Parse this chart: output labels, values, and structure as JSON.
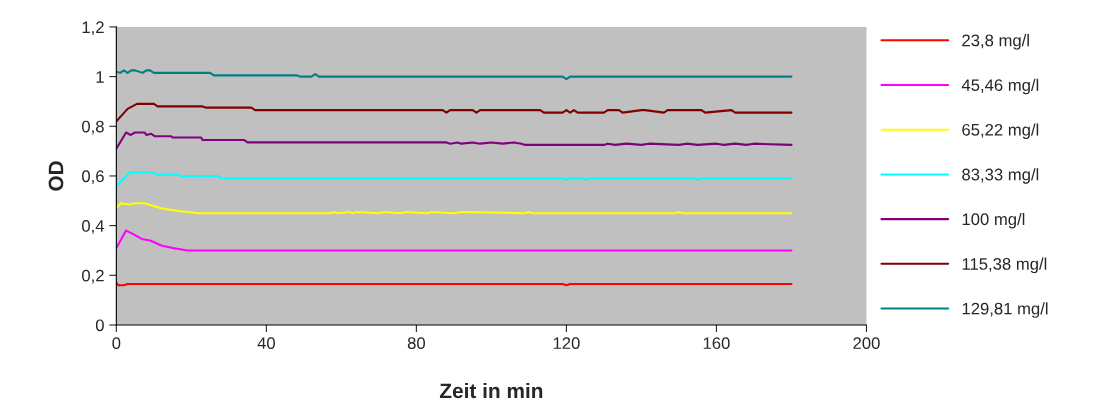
{
  "chart_data": {
    "type": "line",
    "xlabel": "Zeit in min",
    "ylabel": "OD",
    "xlim": [
      0,
      200
    ],
    "ylim": [
      0,
      1.2
    ],
    "xticks": [
      0,
      40,
      80,
      120,
      160,
      200
    ],
    "yticks": [
      0,
      {
        "value": 0.2,
        "label": "0,2"
      },
      {
        "value": 0.4,
        "label": "0,4"
      },
      {
        "value": 0.6,
        "label": "0,6"
      },
      {
        "value": 0.8,
        "label": "0,8"
      },
      1,
      {
        "value": 1.2,
        "label": "1,2"
      }
    ],
    "grid": false,
    "legend": "right",
    "marker": "none",
    "line_style": "solid",
    "series": [
      {
        "name": "23,8 mg/l",
        "color": "#ff0000",
        "x": [
          0,
          0.5,
          1,
          2,
          3,
          119,
          120,
          121,
          180
        ],
        "values": [
          0.17,
          0.16,
          0.16,
          0.16,
          0.165,
          0.165,
          0.16,
          0.165,
          0.165
        ]
      },
      {
        "name": "45,46 mg/l",
        "color": "#ff00ff",
        "x": [
          0,
          2.6,
          4,
          7,
          9,
          12,
          15,
          19,
          180
        ],
        "values": [
          0.31,
          0.38,
          0.37,
          0.345,
          0.34,
          0.32,
          0.31,
          0.3,
          0.3
        ]
      },
      {
        "name": "65,22 mg/l",
        "color": "#ffff00",
        "x": [
          0,
          1.2,
          3.5,
          5,
          7.5,
          9.7,
          12,
          16,
          22,
          57,
          58,
          59,
          62,
          63,
          64,
          70,
          71,
          76,
          77,
          83,
          84,
          90,
          92,
          109,
          110,
          111,
          149,
          150,
          151,
          180
        ],
        "values": [
          0.47,
          0.49,
          0.485,
          0.49,
          0.49,
          0.48,
          0.47,
          0.46,
          0.45,
          0.45,
          0.455,
          0.45,
          0.455,
          0.45,
          0.455,
          0.45,
          0.455,
          0.45,
          0.455,
          0.45,
          0.455,
          0.45,
          0.455,
          0.45,
          0.455,
          0.45,
          0.45,
          0.455,
          0.45,
          0.45
        ]
      },
      {
        "name": "83,33 mg/l",
        "color": "#00ffff",
        "x": [
          0,
          3.7,
          9.7,
          10.6,
          16.4,
          17,
          27,
          28,
          119,
          120,
          121,
          124,
          125,
          126,
          154,
          155,
          156,
          180
        ],
        "values": [
          0.56,
          0.615,
          0.615,
          0.605,
          0.605,
          0.6,
          0.6,
          0.59,
          0.59,
          0.585,
          0.59,
          0.59,
          0.585,
          0.59,
          0.59,
          0.585,
          0.59,
          0.59
        ]
      },
      {
        "name": "100 mg/l",
        "color": "#800080",
        "x": [
          0,
          2.6,
          3.7,
          5,
          7.5,
          8,
          9.3,
          10.2,
          14.6,
          15,
          22.6,
          23,
          34,
          35,
          88,
          89,
          91,
          92,
          95,
          97,
          100,
          103,
          106,
          108,
          109,
          130,
          131,
          133,
          136,
          140,
          142,
          150,
          152,
          155,
          160,
          162,
          165,
          168,
          170,
          180
        ],
        "values": [
          0.71,
          0.775,
          0.765,
          0.775,
          0.775,
          0.765,
          0.77,
          0.76,
          0.76,
          0.755,
          0.755,
          0.745,
          0.745,
          0.735,
          0.735,
          0.73,
          0.735,
          0.73,
          0.735,
          0.73,
          0.735,
          0.73,
          0.735,
          0.73,
          0.725,
          0.725,
          0.73,
          0.725,
          0.73,
          0.725,
          0.73,
          0.725,
          0.73,
          0.725,
          0.73,
          0.725,
          0.73,
          0.725,
          0.73,
          0.725
        ]
      },
      {
        "name": "115,38 mg/l",
        "color": "#800000",
        "x": [
          0,
          3,
          5.5,
          10,
          11,
          23,
          24,
          36,
          37,
          87,
          88,
          89,
          95,
          96,
          97,
          113,
          114,
          119,
          120,
          121,
          122,
          123,
          130,
          131,
          134,
          135,
          140,
          141,
          146,
          147,
          156,
          157,
          164,
          165,
          180
        ],
        "values": [
          0.82,
          0.87,
          0.89,
          0.89,
          0.88,
          0.88,
          0.875,
          0.875,
          0.865,
          0.865,
          0.855,
          0.865,
          0.865,
          0.855,
          0.865,
          0.865,
          0.855,
          0.855,
          0.865,
          0.855,
          0.865,
          0.855,
          0.855,
          0.865,
          0.865,
          0.855,
          0.865,
          0.865,
          0.855,
          0.865,
          0.865,
          0.855,
          0.865,
          0.855,
          0.855
        ]
      },
      {
        "name": "129,81 mg/l",
        "color": "#008080",
        "x": [
          0,
          1,
          2,
          3,
          4,
          5,
          7,
          8,
          9,
          10,
          11,
          25,
          26,
          48,
          49,
          52,
          53,
          54,
          119,
          120,
          121,
          180
        ],
        "values": [
          1.02,
          1.015,
          1.025,
          1.015,
          1.025,
          1.025,
          1.015,
          1.025,
          1.025,
          1.015,
          1.015,
          1.015,
          1.005,
          1.005,
          1.0,
          1.0,
          1.01,
          1.0,
          1.0,
          0.99,
          1.0,
          1.0
        ]
      }
    ]
  }
}
